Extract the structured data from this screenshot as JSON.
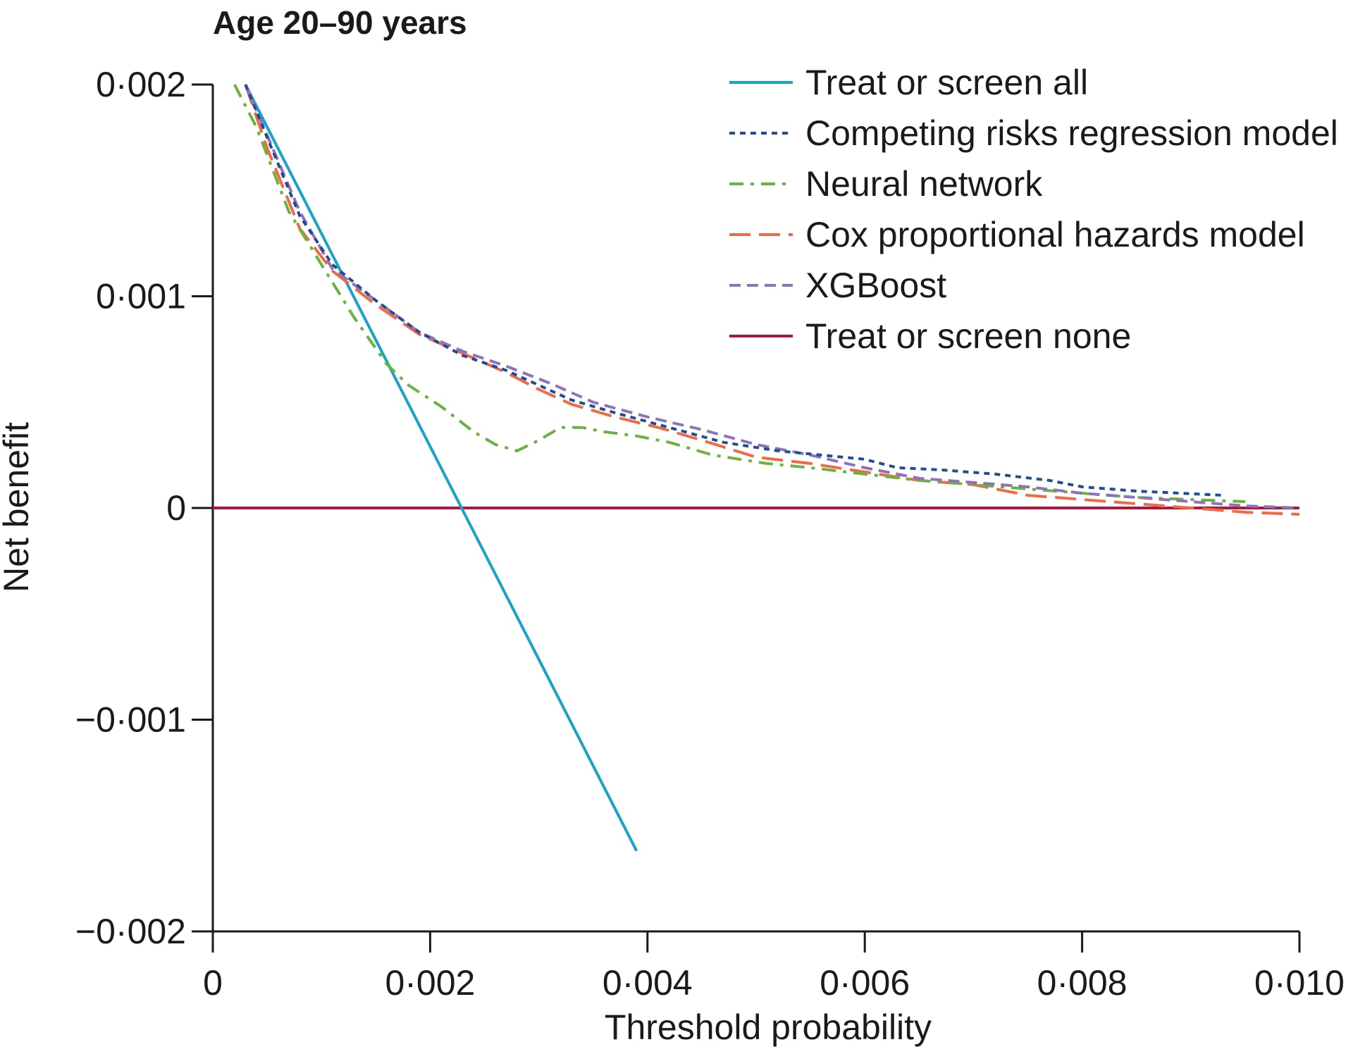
{
  "chart_data": {
    "type": "line",
    "title": "Age 20–90 years",
    "xlabel": "Threshold probability",
    "ylabel": "Net benefit",
    "xlim": [
      0,
      0.01
    ],
    "ylim": [
      -0.002,
      0.002
    ],
    "x_ticks": [
      0,
      0.002,
      0.004,
      0.006,
      0.008,
      0.01
    ],
    "x_tick_labels": [
      "0",
      "0·002",
      "0·004",
      "0·006",
      "0·008",
      "0·010"
    ],
    "y_ticks": [
      0.002,
      0.001,
      0,
      -0.001,
      -0.002
    ],
    "y_tick_labels": [
      "0·002",
      "0·001",
      "0",
      "−0·001",
      "−0·002"
    ],
    "grid": false,
    "legend_position": "top-right",
    "series": [
      {
        "name": "Treat or screen all",
        "color": "#1aa3c8",
        "dash": "solid",
        "points": [
          [
            0.0003,
            0.002
          ],
          [
            0.0039,
            -0.00162
          ]
        ]
      },
      {
        "name": "Competing risks regression model",
        "color": "#1f4e94",
        "dash": "dotted",
        "points": [
          [
            0.0003,
            0.002
          ],
          [
            0.0005,
            0.00175
          ],
          [
            0.0008,
            0.00138
          ],
          [
            0.0011,
            0.00115
          ],
          [
            0.0015,
            0.00098
          ],
          [
            0.0019,
            0.00083
          ],
          [
            0.0023,
            0.00072
          ],
          [
            0.0027,
            0.00065
          ],
          [
            0.003,
            0.00058
          ],
          [
            0.0033,
            0.00051
          ],
          [
            0.0037,
            0.00045
          ],
          [
            0.0042,
            0.00038
          ],
          [
            0.0047,
            0.00031
          ],
          [
            0.0052,
            0.00027
          ],
          [
            0.0056,
            0.00025
          ],
          [
            0.006,
            0.00023
          ],
          [
            0.0063,
            0.00019
          ],
          [
            0.0067,
            0.00018
          ],
          [
            0.0072,
            0.00016
          ],
          [
            0.0077,
            0.00013
          ],
          [
            0.008,
            0.0001
          ],
          [
            0.0085,
            8e-05
          ],
          [
            0.0089,
            7e-05
          ],
          [
            0.0093,
            6e-05
          ]
        ]
      },
      {
        "name": "Neural network",
        "color": "#6ab33e",
        "dash": "dashdot",
        "points": [
          [
            0.0002,
            0.002
          ],
          [
            0.0004,
            0.0018
          ],
          [
            0.0007,
            0.0014
          ],
          [
            0.001,
            0.00115
          ],
          [
            0.0013,
            0.0009
          ],
          [
            0.0016,
            0.00068
          ],
          [
            0.0018,
            0.00058
          ],
          [
            0.0021,
            0.00048
          ],
          [
            0.0024,
            0.00036
          ],
          [
            0.0026,
            0.0003
          ],
          [
            0.0028,
            0.00027
          ],
          [
            0.003,
            0.00032
          ],
          [
            0.0032,
            0.00038
          ],
          [
            0.0034,
            0.00038
          ],
          [
            0.0036,
            0.00036
          ],
          [
            0.0039,
            0.00034
          ],
          [
            0.0042,
            0.00031
          ],
          [
            0.0046,
            0.00025
          ],
          [
            0.0051,
            0.00021
          ],
          [
            0.0055,
            0.00019
          ],
          [
            0.006,
            0.00016
          ],
          [
            0.0065,
            0.00013
          ],
          [
            0.007,
            0.00011
          ],
          [
            0.0075,
            9e-05
          ],
          [
            0.008,
            7e-05
          ],
          [
            0.0085,
            5e-05
          ],
          [
            0.009,
            4e-05
          ],
          [
            0.0095,
            3e-05
          ]
        ]
      },
      {
        "name": "Cox proportional hazards model",
        "color": "#ef6a45",
        "dash": "longdash",
        "points": [
          [
            0.0003,
            0.002
          ],
          [
            0.0005,
            0.0017
          ],
          [
            0.0008,
            0.00132
          ],
          [
            0.0011,
            0.00112
          ],
          [
            0.0015,
            0.00096
          ],
          [
            0.0019,
            0.00082
          ],
          [
            0.0023,
            0.00073
          ],
          [
            0.0027,
            0.00064
          ],
          [
            0.003,
            0.00056
          ],
          [
            0.0033,
            0.00049
          ],
          [
            0.0037,
            0.00043
          ],
          [
            0.0041,
            0.00038
          ],
          [
            0.0045,
            0.00032
          ],
          [
            0.005,
            0.00024
          ],
          [
            0.0055,
            0.00021
          ],
          [
            0.006,
            0.00017
          ],
          [
            0.0065,
            0.00013
          ],
          [
            0.007,
            0.00011
          ],
          [
            0.0075,
            6e-05
          ],
          [
            0.008,
            4e-05
          ],
          [
            0.0085,
            2e-05
          ],
          [
            0.009,
            0.0
          ],
          [
            0.0095,
            -2e-05
          ],
          [
            0.01,
            -3e-05
          ]
        ]
      },
      {
        "name": "XGBoost",
        "color": "#8f72bd",
        "dash": "dashed",
        "points": [
          [
            0.0003,
            0.002
          ],
          [
            0.0005,
            0.00176
          ],
          [
            0.0008,
            0.0014
          ],
          [
            0.0011,
            0.00113
          ],
          [
            0.0015,
            0.00098
          ],
          [
            0.0019,
            0.00083
          ],
          [
            0.0023,
            0.00074
          ],
          [
            0.0027,
            0.00067
          ],
          [
            0.0031,
            0.00059
          ],
          [
            0.0035,
            0.0005
          ],
          [
            0.004,
            0.00043
          ],
          [
            0.0045,
            0.00037
          ],
          [
            0.005,
            0.0003
          ],
          [
            0.0055,
            0.00025
          ],
          [
            0.006,
            0.00019
          ],
          [
            0.0065,
            0.00014
          ],
          [
            0.007,
            0.00012
          ],
          [
            0.0075,
            0.0001
          ],
          [
            0.008,
            7e-05
          ],
          [
            0.0085,
            5e-05
          ],
          [
            0.009,
            3e-05
          ],
          [
            0.0095,
            1e-05
          ],
          [
            0.01,
            0.0
          ]
        ]
      },
      {
        "name": "Treat or screen none",
        "color": "#b5143e",
        "dash": "solid",
        "points": [
          [
            0,
            0
          ],
          [
            0.01,
            0
          ]
        ]
      }
    ]
  }
}
